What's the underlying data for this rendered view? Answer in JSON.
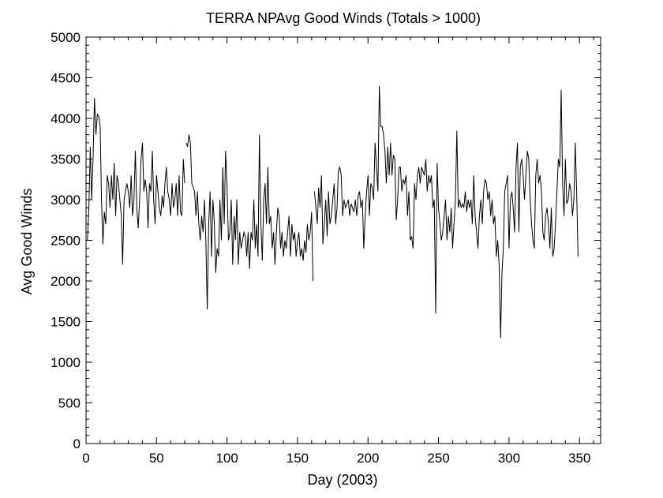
{
  "chart_data": {
    "type": "line",
    "title": "TERRA NPAvg Good Winds (Totals > 1000)",
    "xlabel": "Day (2003)",
    "ylabel": "Avg Good Winds",
    "xlim": [
      0,
      365
    ],
    "ylim": [
      0,
      5000
    ],
    "x_ticks": [
      0,
      50,
      100,
      150,
      200,
      250,
      300,
      350
    ],
    "y_ticks": [
      0,
      500,
      1000,
      1500,
      2000,
      2500,
      3000,
      3500,
      4000,
      4500,
      5000
    ],
    "grid": false,
    "line_color": "#000000",
    "series": [
      {
        "segments": [
          {
            "x": [
              1,
              2,
              3,
              4,
              5,
              6,
              7,
              8,
              9,
              10,
              11,
              12,
              13,
              14,
              15,
              16,
              17,
              18,
              19,
              20,
              21,
              22,
              23,
              24,
              25,
              26,
              27,
              28,
              29,
              30,
              31,
              32,
              33,
              34,
              35,
              36,
              37,
              38,
              39,
              40,
              41,
              42,
              43,
              44,
              45,
              46,
              47,
              48,
              49,
              50,
              51,
              52,
              53,
              54,
              55,
              56,
              57,
              58,
              59,
              60,
              61,
              62,
              63,
              64,
              65,
              66,
              67,
              68,
              69,
              70
            ],
            "y": [
              2500,
              2900,
              3650,
              3000,
              3500,
              4250,
              3800,
              4050,
              4020,
              3900,
              3000,
              2450,
              2850,
              2700,
              3300,
              3200,
              2900,
              3300,
              3000,
              3450,
              2800,
              3300,
              3200,
              3000,
              2800,
              2200,
              3000,
              3100,
              3200,
              3100,
              2900,
              3300,
              2800,
              3000,
              3600,
              2900,
              2650,
              3000,
              3500,
              3700,
              3100,
              3250,
              3100,
              2650,
              3200,
              3100,
              3600,
              3000,
              2700,
              3300,
              3100,
              2900,
              2800,
              3050,
              2900,
              3200,
              3400,
              3100,
              3000,
              2800,
              3200,
              2900,
              3000,
              3200,
              2800,
              3300,
              2850,
              2800,
              3500,
              3200
            ]
          },
          {
            "x": [
              71,
              72,
              73,
              74,
              75,
              76,
              77,
              78,
              79,
              80,
              81,
              82,
              83,
              84,
              85,
              86,
              87,
              88,
              89,
              90,
              91,
              92,
              93,
              94,
              95,
              96,
              97,
              98,
              99,
              100,
              101,
              102,
              103,
              104,
              105,
              106,
              107,
              108,
              109,
              110,
              111,
              112,
              113,
              114,
              115,
              116,
              117,
              118,
              119,
              120,
              121,
              122,
              123,
              124,
              125,
              126,
              127,
              128,
              129,
              130,
              131,
              132,
              133,
              134,
              135,
              136,
              137,
              138,
              139,
              140,
              141,
              142,
              143,
              144,
              145,
              146,
              147,
              148,
              149,
              150,
              151,
              152,
              153,
              154,
              155,
              156,
              157,
              158,
              159,
              160,
              161
            ],
            "y": [
              3700,
              3650,
              3800,
              3700,
              3200,
              3150,
              3100,
              2800,
              3100,
              2700,
              2500,
              2800,
              2600,
              3000,
              2500,
              1650,
              2700,
              3100,
              2300,
              3000,
              2700,
              2100,
              2400,
              2300,
              3000,
              2500,
              3400,
              2700,
              3600,
              3200,
              2500,
              2600,
              3000,
              2200,
              2800,
              2500,
              3000,
              2200,
              2600,
              2400,
              2500,
              2600,
              2550,
              2300,
              2600,
              2150,
              2600,
              2500,
              3000,
              2400,
              2700,
              2300,
              3800,
              2700,
              2250,
              3000,
              3200,
              2700,
              3400,
              2700,
              2800,
              2400,
              2600,
              2200,
              2600,
              2900,
              2800,
              2400,
              2600,
              2300,
              2500,
              2400,
              2600,
              2800,
              2300,
              2700,
              2500,
              2600,
              2300,
              2500,
              2600,
              2300,
              2400,
              2250,
              2500,
              2350,
              2700,
              2500,
              2600,
              2850,
              2000
            ]
          },
          {
            "x": [
              162,
              163,
              164,
              165,
              166,
              167,
              168,
              169,
              170,
              171,
              172,
              173,
              174,
              175,
              176,
              177,
              178,
              179,
              180,
              181,
              182,
              183,
              184,
              185,
              186,
              187,
              188,
              189,
              190,
              191,
              192,
              193,
              194,
              195,
              196,
              197,
              198,
              199,
              200,
              201,
              202,
              203,
              204,
              205,
              206,
              207,
              208,
              209,
              210,
              211,
              212,
              213,
              214,
              215,
              216,
              217,
              218,
              219,
              220,
              221,
              222,
              223,
              224,
              225,
              226,
              227,
              228,
              229,
              230,
              231,
              232,
              233,
              234,
              235,
              236,
              237,
              238,
              239,
              240,
              241,
              242,
              243,
              244,
              245,
              246,
              247,
              248,
              249,
              250,
              251,
              252,
              253,
              254,
              255,
              256,
              257,
              258,
              259,
              260,
              261,
              262,
              263,
              264,
              265,
              266,
              267,
              268,
              269,
              270,
              271,
              272,
              273,
              274,
              275,
              276,
              277,
              278,
              279,
              280,
              281,
              282,
              283,
              284,
              285,
              286,
              287,
              288,
              289,
              290,
              291,
              292,
              293,
              294,
              295,
              296,
              297,
              298,
              299,
              300,
              301,
              302,
              303,
              304,
              305,
              306,
              307,
              308,
              309,
              310,
              311,
              312,
              313,
              314,
              315,
              316,
              317,
              318,
              319,
              320,
              321,
              322,
              323,
              324,
              325,
              326,
              327,
              328,
              329,
              330,
              331,
              332,
              333,
              334,
              335,
              336,
              337,
              338,
              339,
              340,
              341,
              342,
              343,
              344,
              345,
              346,
              347,
              348,
              349
            ],
            "y": [
              3100,
              2900,
              2700,
              3150,
              2900,
              3300,
              2450,
              2700,
              3000,
              2550,
              3100,
              2700,
              2800,
              3000,
              3200,
              2700,
              2900,
              3350,
              3400,
              3300,
              2800,
              3000,
              2900,
              2950,
              3000,
              2800,
              2950,
              2900,
              2850,
              3000,
              2800,
              3050,
              3100,
              2900,
              3000,
              2400,
              2800,
              3100,
              3300,
              2800,
              3200,
              3150,
              3000,
              3700,
              3400,
              3100,
              4400,
              3900,
              3900,
              3800,
              3600,
              3200,
              3650,
              3300,
              3700,
              3300,
              3550,
              3500,
              2750,
              3000,
              3400,
              3400,
              3100,
              3250,
              3200,
              3300,
              2800,
              3100,
              2500,
              2550,
              2400,
              3200,
              3000,
              3300,
              3400,
              3200,
              3400,
              3350,
              3300,
              3500,
              3100,
              3300,
              3200,
              3300,
              2900,
              3000,
              1600,
              3450,
              2900,
              2700,
              2500,
              2600,
              2800,
              3000,
              2500,
              2800,
              2600,
              2900,
              2400,
              2700,
              3000,
              3850,
              2900,
              3000,
              2900,
              2950,
              2900,
              3100,
              2850,
              3000,
              2900,
              3000,
              2700,
              3300,
              2800,
              2600,
              2400,
              2800,
              3000,
              2700,
              3100,
              3250,
              3200,
              3000,
              3100,
              2800,
              3000,
              2700,
              2800,
              2300,
              2500,
              2200,
              1300,
              2100,
              2400,
              3100,
              3200,
              3300,
              2400,
              3000,
              3100,
              2900,
              2600,
              3400,
              3700,
              2600,
              3400,
              3500,
              3300,
              3000,
              3300,
              3600,
              3500,
              3000,
              2700,
              2500,
              2400,
              3300,
              3500,
              3200,
              3300,
              3100,
              2600,
              2500,
              2800,
              2900,
              2700,
              2400,
              2900,
              2300,
              2400,
              2700,
              3100,
              3500,
              3400,
              4350,
              3200,
              2800,
              3500,
              2950,
              3000,
              3200,
              3100,
              2800,
              3000,
              3700,
              3100,
              2300
            ]
          }
        ]
      }
    ]
  }
}
